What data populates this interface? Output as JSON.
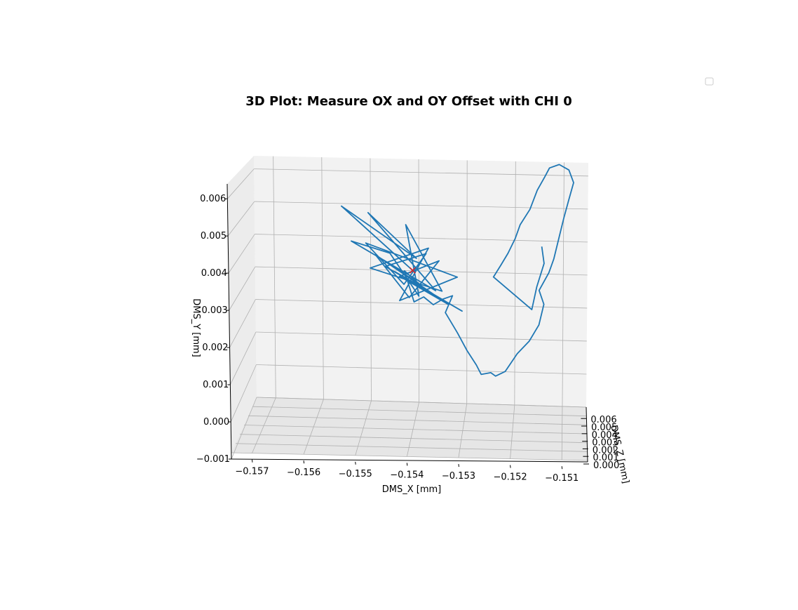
{
  "chart_data": {
    "type": "line",
    "projection": "3d",
    "title": "3D Plot: Measure OX and OY Offset with CHI 0",
    "xlabel": "DMS_X [mm]",
    "ylabel": "DMS_Y [mm]",
    "zlabel": "DMS_Z [mm]",
    "x_ticks": [
      "−0.157",
      "−0.156",
      "−0.155",
      "−0.154",
      "−0.153",
      "−0.152",
      "−0.151"
    ],
    "y_ticks": [
      "−0.001",
      "0.000",
      "0.001",
      "0.002",
      "0.003",
      "0.004",
      "0.005",
      "0.006"
    ],
    "z_ticks": [
      "0.000",
      "0.001",
      "0.002",
      "0.003",
      "0.004",
      "0.005",
      "0.006"
    ],
    "xlim": [
      -0.1574,
      -0.1505
    ],
    "ylim": [
      -0.001,
      0.0064
    ],
    "grid": true,
    "legend": {
      "position": "top-right",
      "entries": []
    },
    "colors": {
      "series": "#1f77b4",
      "marker": "#d62728",
      "pane": "#f2f2f2",
      "grid": "#b0b0b0"
    },
    "series": [
      {
        "points": [
          [
            -0.15413,
            0.00301
          ],
          [
            -0.1556,
            0.00492
          ],
          [
            -0.15405,
            0.00338
          ],
          [
            -0.15505,
            0.00474
          ],
          [
            -0.15365,
            0.00241
          ],
          [
            -0.1554,
            0.00386
          ],
          [
            -0.1546,
            0.00352
          ],
          [
            -0.154,
            0.00223
          ],
          [
            -0.15427,
            0.0044
          ],
          [
            -0.15352,
            0.0024
          ],
          [
            -0.15501,
            0.00305
          ],
          [
            -0.1538,
            0.0037
          ],
          [
            -0.1544,
            0.00208
          ],
          [
            -0.1532,
            0.00284
          ],
          [
            -0.1551,
            0.00381
          ],
          [
            -0.15431,
            0.00258
          ],
          [
            -0.15385,
            0.00353
          ],
          [
            -0.1547,
            0.00311
          ],
          [
            -0.1531,
            0.00181
          ],
          [
            -0.1545,
            0.00296
          ],
          [
            -0.1538,
            0.00239
          ],
          [
            -0.1549,
            0.00346
          ],
          [
            -0.1542,
            0.00218
          ],
          [
            -0.15358,
            0.00332
          ],
          [
            -0.1544,
            0.00282
          ],
          [
            -0.1534,
            0.00201
          ],
          [
            -0.1546,
            0.00318
          ],
          [
            -0.154,
            0.00261
          ],
          [
            -0.1543,
            0.00299
          ],
          [
            -0.1541,
            0.00205
          ],
          [
            -0.1539,
            0.00221
          ],
          [
            -0.1537,
            0.00198
          ],
          [
            -0.1535,
            0.00216
          ],
          [
            -0.1533,
            0.00227
          ],
          [
            -0.15345,
            0.00175
          ],
          [
            -0.1532,
            0.00115
          ],
          [
            -0.153,
            0.00062
          ],
          [
            -0.1528,
            0.00018
          ],
          [
            -0.1527,
            -0.0001
          ],
          [
            -0.1525,
            -4e-05
          ],
          [
            -0.1524,
            -0.00014
          ],
          [
            -0.1522,
            1e-05
          ],
          [
            -0.15195,
            0.00056
          ],
          [
            -0.1517,
            0.00095
          ],
          [
            -0.1515,
            0.00145
          ],
          [
            -0.1514,
            0.00208
          ],
          [
            -0.1515,
            0.0025
          ],
          [
            -0.1513,
            0.00304
          ],
          [
            -0.1512,
            0.00346
          ],
          [
            -0.1511,
            0.00408
          ],
          [
            -0.151,
            0.0047
          ],
          [
            -0.1509,
            0.00525
          ],
          [
            -0.1508,
            0.00579
          ],
          [
            -0.1509,
            0.00617
          ],
          [
            -0.1511,
            0.00633
          ],
          [
            -0.1513,
            0.00622
          ],
          [
            -0.1514,
            0.00594
          ],
          [
            -0.15155,
            0.00554
          ],
          [
            -0.1517,
            0.00495
          ],
          [
            -0.1519,
            0.00448
          ],
          [
            -0.152,
            0.00406
          ],
          [
            -0.15215,
            0.0036
          ],
          [
            -0.1523,
            0.00323
          ],
          [
            -0.15245,
            0.00287
          ],
          [
            -0.15165,
            0.00191
          ],
          [
            -0.15155,
            0.0026
          ],
          [
            -0.1514,
            0.00332
          ],
          [
            -0.15145,
            0.00383
          ]
        ]
      }
    ],
    "marker": {
      "symbol": "x",
      "point": [
        -0.15413,
        0.00301
      ]
    }
  }
}
